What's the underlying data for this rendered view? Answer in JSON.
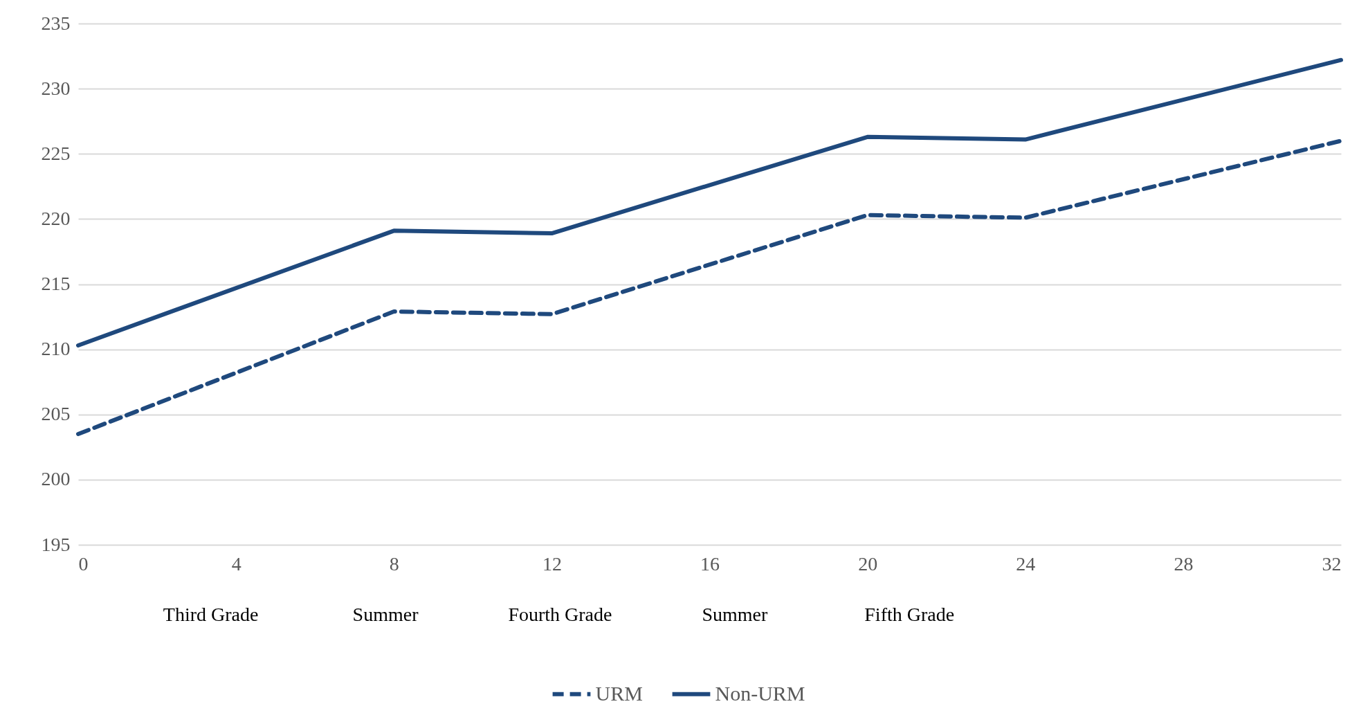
{
  "chart_data": {
    "type": "line",
    "x": [
      0,
      8,
      12,
      20,
      24,
      32
    ],
    "series": [
      {
        "name": "URM",
        "color": "#1f497d",
        "line_style": "dashed",
        "values": [
          203.5,
          212.9,
          212.7,
          220.3,
          220.1,
          226.0
        ]
      },
      {
        "name": "Non-URM",
        "color": "#1f497d",
        "line_style": "solid",
        "values": [
          210.3,
          219.1,
          218.9,
          226.3,
          226.1,
          232.2
        ]
      }
    ],
    "xlim": [
      0,
      32
    ],
    "xticks": [
      0,
      4,
      8,
      12,
      16,
      20,
      24,
      28,
      32
    ],
    "ylim": [
      195,
      235
    ],
    "yticks": [
      195,
      200,
      205,
      210,
      215,
      220,
      225,
      230,
      235
    ],
    "grid": "y",
    "legend": "bottom",
    "marker": "none",
    "annotations": [
      "Third Grade",
      "Summer",
      "Fourth Grade",
      "Summer",
      "Fifth Grade"
    ]
  }
}
